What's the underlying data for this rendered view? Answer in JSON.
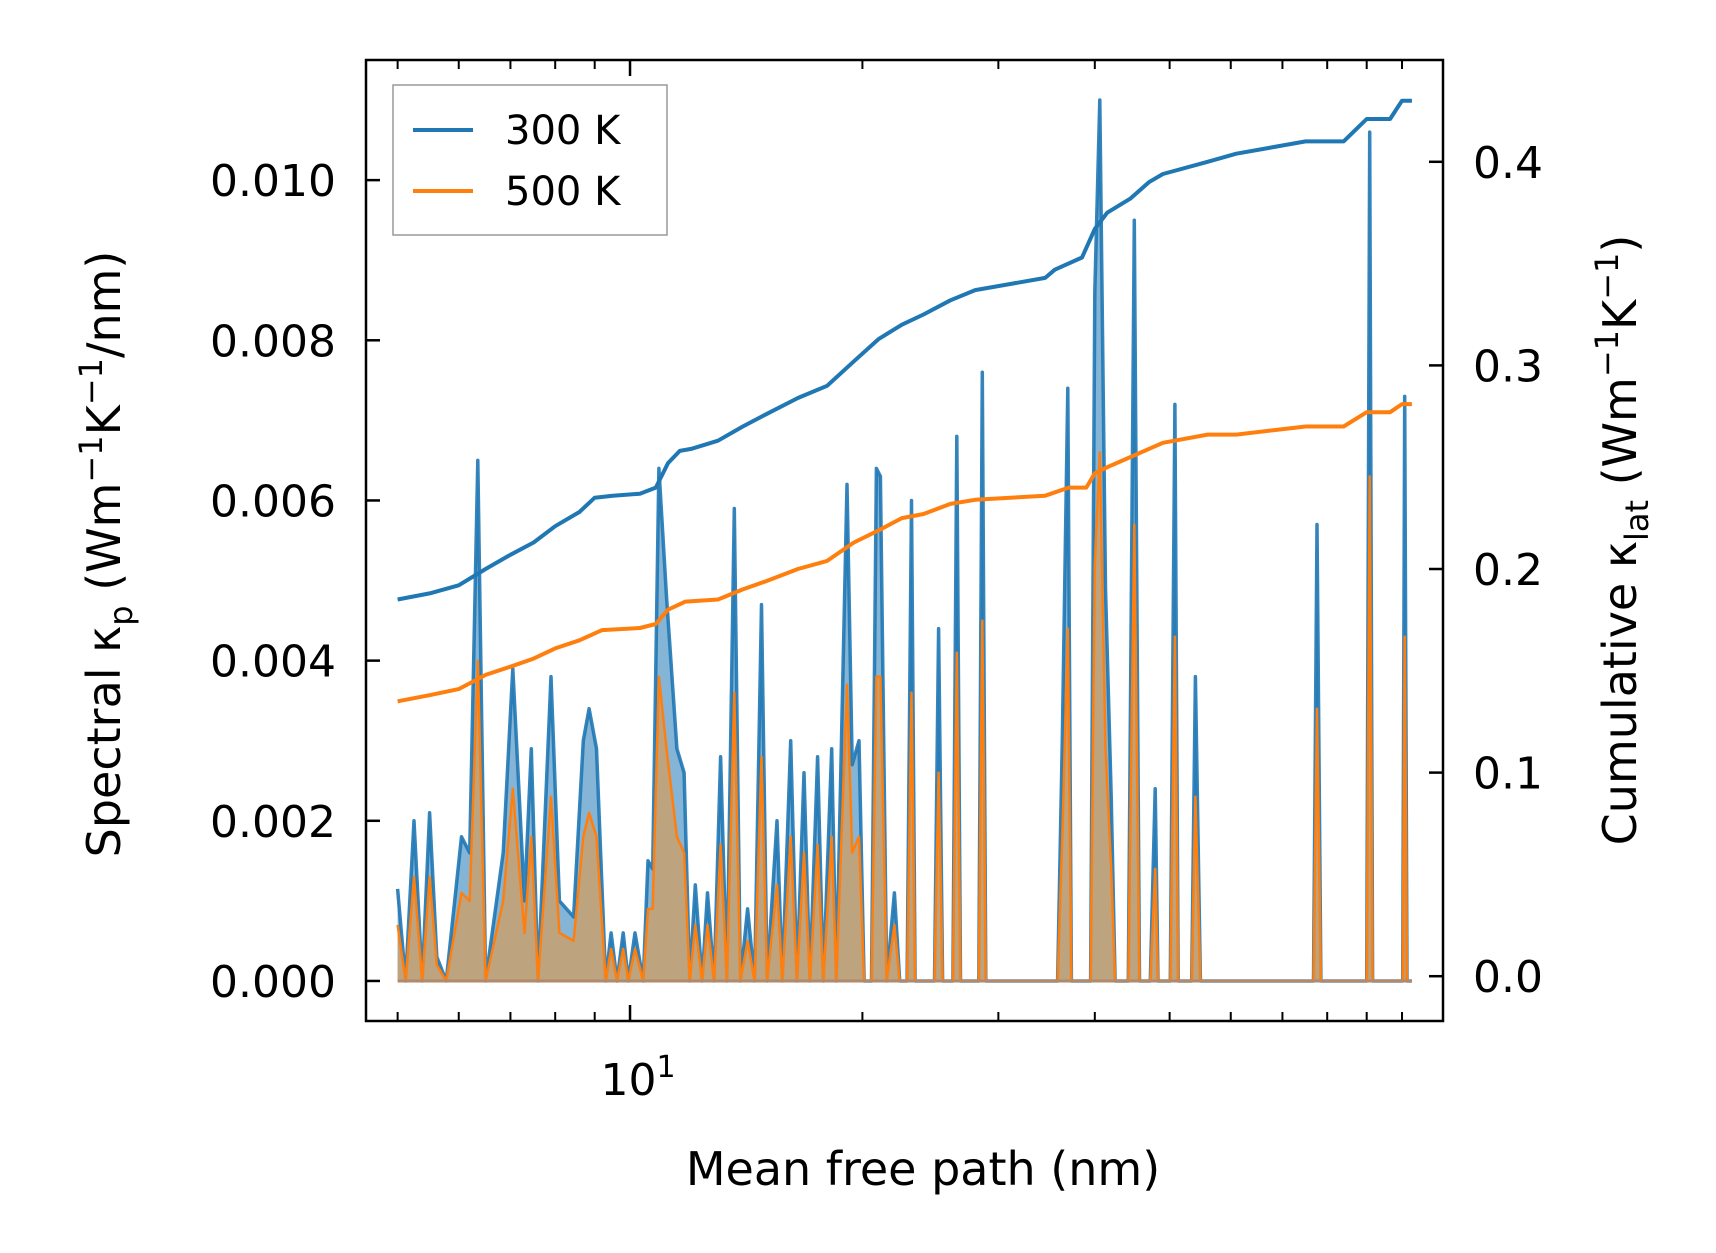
{
  "chart_data": {
    "type": "line",
    "xscale": "log",
    "xlabel": "Mean free path (nm)",
    "xlim": [
      4.55,
      113
    ],
    "x_tick_labels": [
      {
        "base": "10",
        "exp": "1"
      }
    ],
    "ylabel_left": {
      "prefix": "Spectral κ",
      "sub": "p",
      "units_open": " (Wm",
      "exp1": "−1",
      "mid": "K",
      "exp2": "−1",
      "units_close": "/nm)"
    },
    "ylabel_right": {
      "prefix": "Cumulative κ",
      "sub": "lat",
      "units_open": " (Wm",
      "exp1": "−1",
      "mid": "K",
      "exp2": "−1",
      "units_close": ")"
    },
    "ylim_left": [
      -0.0005,
      0.0115
    ],
    "ylim_right": [
      -0.022,
      0.45
    ],
    "yticks_left": [
      "0.000",
      "0.002",
      "0.004",
      "0.006",
      "0.008",
      "0.010"
    ],
    "yticks_right": [
      "0.0",
      "0.1",
      "0.2",
      "0.3",
      "0.4"
    ],
    "legend": {
      "position": "top-left",
      "entries": [
        "300 K",
        "500 K"
      ]
    },
    "colors": {
      "s300": "#1f77b4",
      "s500": "#ff7f0e",
      "fill300": "#4f8fc0",
      "fill500": "#c8a070"
    },
    "spectral": {
      "300K": [
        [
          5.0,
          0.00115
        ],
        [
          5.12,
          0.0
        ],
        [
          5.25,
          0.002
        ],
        [
          5.38,
          0.0
        ],
        [
          5.5,
          0.0021
        ],
        [
          5.62,
          0.0003
        ],
        [
          5.78,
          0.0
        ],
        [
          6.05,
          0.0018
        ],
        [
          6.2,
          0.0016
        ],
        [
          6.35,
          0.0065
        ],
        [
          6.5,
          0.0
        ],
        [
          6.85,
          0.0016
        ],
        [
          7.05,
          0.0039
        ],
        [
          7.3,
          0.001
        ],
        [
          7.45,
          0.0029
        ],
        [
          7.6,
          0.0
        ],
        [
          7.9,
          0.0038
        ],
        [
          8.1,
          0.001
        ],
        [
          8.45,
          0.0008
        ],
        [
          8.7,
          0.003
        ],
        [
          8.85,
          0.0034
        ],
        [
          9.05,
          0.0029
        ],
        [
          9.3,
          0.0
        ],
        [
          9.45,
          0.0006
        ],
        [
          9.62,
          0.0
        ],
        [
          9.8,
          0.0006
        ],
        [
          9.95,
          0.0
        ],
        [
          10.15,
          0.0006
        ],
        [
          10.4,
          0.0
        ],
        [
          10.55,
          0.0015
        ],
        [
          10.7,
          0.0014
        ],
        [
          10.9,
          0.0064
        ],
        [
          11.15,
          0.0048
        ],
        [
          11.5,
          0.0029
        ],
        [
          11.75,
          0.0026
        ],
        [
          11.95,
          0.0
        ],
        [
          12.15,
          0.0012
        ],
        [
          12.4,
          0.0
        ],
        [
          12.6,
          0.0011
        ],
        [
          12.85,
          0.0
        ],
        [
          13.1,
          0.0028
        ],
        [
          13.35,
          0.0
        ],
        [
          13.65,
          0.0059
        ],
        [
          13.9,
          0.0
        ],
        [
          14.2,
          0.0009
        ],
        [
          14.5,
          0.0
        ],
        [
          14.8,
          0.0047
        ],
        [
          15.05,
          0.0
        ],
        [
          15.5,
          0.002
        ],
        [
          15.75,
          0.0
        ],
        [
          16.15,
          0.003
        ],
        [
          16.45,
          0.0
        ],
        [
          16.8,
          0.0026
        ],
        [
          17.1,
          0.0
        ],
        [
          17.5,
          0.0028
        ],
        [
          17.8,
          0.0
        ],
        [
          18.25,
          0.0029
        ],
        [
          18.5,
          0.0
        ],
        [
          19.1,
          0.0062
        ],
        [
          19.4,
          0.0027
        ],
        [
          19.8,
          0.003
        ],
        [
          20.1,
          0.0
        ],
        [
          20.55,
          0.0
        ],
        [
          20.85,
          0.0064
        ],
        [
          21.1,
          0.0063
        ],
        [
          21.5,
          0.0
        ],
        [
          22.0,
          0.0011
        ],
        [
          22.35,
          0.0
        ],
        [
          22.85,
          0.0
        ],
        [
          23.15,
          0.006
        ],
        [
          23.4,
          0.0
        ],
        [
          24.8,
          0.0
        ],
        [
          25.1,
          0.0044
        ],
        [
          25.4,
          0.0
        ],
        [
          26.2,
          0.0
        ],
        [
          26.5,
          0.0068
        ],
        [
          26.8,
          0.0
        ],
        [
          28.3,
          0.0
        ],
        [
          28.6,
          0.0076
        ],
        [
          28.9,
          0.0
        ],
        [
          29.4,
          0.0
        ],
        [
          35.8,
          0.0
        ],
        [
          36.3,
          0.003
        ],
        [
          36.9,
          0.0074
        ],
        [
          37.3,
          0.0
        ],
        [
          39.5,
          0.0
        ],
        [
          40.0,
          0.0086
        ],
        [
          40.6,
          0.011
        ],
        [
          41.3,
          0.0049
        ],
        [
          42.0,
          0.0023
        ],
        [
          42.5,
          0.0
        ],
        [
          44.2,
          0.0
        ],
        [
          45.0,
          0.0095
        ],
        [
          45.7,
          0.0
        ],
        [
          47.2,
          0.0
        ],
        [
          47.9,
          0.0024
        ],
        [
          48.3,
          0.0
        ],
        [
          50.1,
          0.0
        ],
        [
          50.8,
          0.0072
        ],
        [
          51.3,
          0.0
        ],
        [
          53.4,
          0.0
        ],
        [
          54.0,
          0.0038
        ],
        [
          54.8,
          0.0
        ],
        [
          76.8,
          0.0
        ],
        [
          77.6,
          0.0057
        ],
        [
          78.5,
          0.0
        ],
        [
          90.0,
          0.0
        ],
        [
          90.8,
          0.0106
        ],
        [
          91.6,
          0.0
        ],
        [
          100.2,
          0.0
        ],
        [
          100.8,
          0.0073
        ],
        [
          101.5,
          0.0
        ],
        [
          103.0,
          0.0
        ]
      ],
      "500K": [
        [
          5.0,
          0.0007
        ],
        [
          5.12,
          0.0
        ],
        [
          5.25,
          0.0013
        ],
        [
          5.38,
          0.0
        ],
        [
          5.5,
          0.0013
        ],
        [
          5.62,
          0.0002
        ],
        [
          5.78,
          0.0
        ],
        [
          6.05,
          0.0011
        ],
        [
          6.2,
          0.001
        ],
        [
          6.35,
          0.004
        ],
        [
          6.5,
          0.0
        ],
        [
          6.85,
          0.001
        ],
        [
          7.05,
          0.0024
        ],
        [
          7.3,
          0.0006
        ],
        [
          7.45,
          0.0018
        ],
        [
          7.6,
          0.0
        ],
        [
          7.9,
          0.0023
        ],
        [
          8.1,
          0.0006
        ],
        [
          8.45,
          0.0005
        ],
        [
          8.7,
          0.0018
        ],
        [
          8.85,
          0.0021
        ],
        [
          9.05,
          0.0018
        ],
        [
          9.3,
          0.0
        ],
        [
          9.45,
          0.0004
        ],
        [
          9.62,
          0.0
        ],
        [
          9.8,
          0.0004
        ],
        [
          9.95,
          0.0
        ],
        [
          10.15,
          0.0004
        ],
        [
          10.4,
          0.0
        ],
        [
          10.55,
          0.0009
        ],
        [
          10.7,
          0.0009
        ],
        [
          10.9,
          0.0038
        ],
        [
          11.15,
          0.0029
        ],
        [
          11.5,
          0.0018
        ],
        [
          11.75,
          0.0016
        ],
        [
          11.95,
          0.0
        ],
        [
          12.15,
          0.0007
        ],
        [
          12.4,
          0.0
        ],
        [
          12.6,
          0.0007
        ],
        [
          12.85,
          0.0
        ],
        [
          13.1,
          0.0017
        ],
        [
          13.35,
          0.0
        ],
        [
          13.65,
          0.0036
        ],
        [
          13.9,
          0.0
        ],
        [
          14.2,
          0.0005
        ],
        [
          14.5,
          0.0
        ],
        [
          14.8,
          0.0028
        ],
        [
          15.05,
          0.0
        ],
        [
          15.5,
          0.0012
        ],
        [
          15.75,
          0.0
        ],
        [
          16.15,
          0.0018
        ],
        [
          16.45,
          0.0
        ],
        [
          16.8,
          0.0016
        ],
        [
          17.1,
          0.0
        ],
        [
          17.5,
          0.0017
        ],
        [
          17.8,
          0.0
        ],
        [
          18.25,
          0.0018
        ],
        [
          18.5,
          0.0
        ],
        [
          19.1,
          0.0037
        ],
        [
          19.4,
          0.0016
        ],
        [
          19.8,
          0.0018
        ],
        [
          20.1,
          0.0
        ],
        [
          20.55,
          0.0
        ],
        [
          20.85,
          0.0038
        ],
        [
          21.1,
          0.0038
        ],
        [
          21.5,
          0.0
        ],
        [
          22.0,
          0.0007
        ],
        [
          22.35,
          0.0
        ],
        [
          22.85,
          0.0
        ],
        [
          23.15,
          0.0036
        ],
        [
          23.4,
          0.0
        ],
        [
          24.8,
          0.0
        ],
        [
          25.1,
          0.0026
        ],
        [
          25.4,
          0.0
        ],
        [
          26.2,
          0.0
        ],
        [
          26.5,
          0.0041
        ],
        [
          26.8,
          0.0
        ],
        [
          28.3,
          0.0
        ],
        [
          28.6,
          0.0045
        ],
        [
          28.9,
          0.0
        ],
        [
          29.4,
          0.0
        ],
        [
          35.8,
          0.0
        ],
        [
          36.3,
          0.0018
        ],
        [
          36.9,
          0.0044
        ],
        [
          37.3,
          0.0
        ],
        [
          39.5,
          0.0
        ],
        [
          40.0,
          0.0052
        ],
        [
          40.6,
          0.0066
        ],
        [
          41.3,
          0.0029
        ],
        [
          42.0,
          0.0014
        ],
        [
          42.5,
          0.0
        ],
        [
          44.2,
          0.0
        ],
        [
          45.0,
          0.0057
        ],
        [
          45.7,
          0.0
        ],
        [
          47.2,
          0.0
        ],
        [
          47.9,
          0.0014
        ],
        [
          48.3,
          0.0
        ],
        [
          50.1,
          0.0
        ],
        [
          50.8,
          0.0043
        ],
        [
          51.3,
          0.0
        ],
        [
          53.4,
          0.0
        ],
        [
          54.0,
          0.0023
        ],
        [
          54.8,
          0.0
        ],
        [
          76.8,
          0.0
        ],
        [
          77.6,
          0.0034
        ],
        [
          78.5,
          0.0
        ],
        [
          90.0,
          0.0
        ],
        [
          90.8,
          0.0063
        ],
        [
          91.6,
          0.0
        ],
        [
          100.2,
          0.0
        ],
        [
          100.8,
          0.0043
        ],
        [
          101.5,
          0.0
        ],
        [
          103.0,
          0.0
        ]
      ]
    },
    "cumulative": {
      "300K": [
        [
          5.0,
          0.185
        ],
        [
          5.5,
          0.188
        ],
        [
          6.0,
          0.192
        ],
        [
          6.5,
          0.2
        ],
        [
          7.0,
          0.207
        ],
        [
          7.5,
          0.213
        ],
        [
          8.0,
          0.221
        ],
        [
          8.6,
          0.228
        ],
        [
          9.0,
          0.235
        ],
        [
          9.5,
          0.236
        ],
        [
          10.3,
          0.237
        ],
        [
          10.8,
          0.24
        ],
        [
          11.2,
          0.252
        ],
        [
          11.6,
          0.258
        ],
        [
          12.0,
          0.259
        ],
        [
          13.0,
          0.263
        ],
        [
          14.0,
          0.27
        ],
        [
          15.0,
          0.276
        ],
        [
          16.5,
          0.284
        ],
        [
          18.0,
          0.29
        ],
        [
          19.5,
          0.302
        ],
        [
          21.0,
          0.313
        ],
        [
          22.5,
          0.32
        ],
        [
          24.0,
          0.325
        ],
        [
          26.0,
          0.332
        ],
        [
          28.0,
          0.337
        ],
        [
          34.5,
          0.343
        ],
        [
          35.5,
          0.347
        ],
        [
          38.5,
          0.353
        ],
        [
          40.0,
          0.367
        ],
        [
          41.5,
          0.375
        ],
        [
          44.5,
          0.382
        ],
        [
          47.0,
          0.39
        ],
        [
          49.0,
          0.394
        ],
        [
          56.0,
          0.4
        ],
        [
          61.0,
          0.404
        ],
        [
          75.0,
          0.41
        ],
        [
          84.0,
          0.41
        ],
        [
          90.0,
          0.421
        ],
        [
          96.5,
          0.421
        ],
        [
          100.0,
          0.43
        ],
        [
          103.0,
          0.43
        ]
      ],
      "500K": [
        [
          5.0,
          0.135
        ],
        [
          5.5,
          0.138
        ],
        [
          6.0,
          0.141
        ],
        [
          6.5,
          0.148
        ],
        [
          7.0,
          0.152
        ],
        [
          7.5,
          0.156
        ],
        [
          8.0,
          0.161
        ],
        [
          8.6,
          0.165
        ],
        [
          9.2,
          0.17
        ],
        [
          10.3,
          0.171
        ],
        [
          10.8,
          0.173
        ],
        [
          11.2,
          0.18
        ],
        [
          11.8,
          0.184
        ],
        [
          13.0,
          0.185
        ],
        [
          14.0,
          0.19
        ],
        [
          15.0,
          0.194
        ],
        [
          16.5,
          0.2
        ],
        [
          18.0,
          0.204
        ],
        [
          19.5,
          0.213
        ],
        [
          21.0,
          0.219
        ],
        [
          22.5,
          0.225
        ],
        [
          24.0,
          0.227
        ],
        [
          26.0,
          0.232
        ],
        [
          28.0,
          0.234
        ],
        [
          34.5,
          0.236
        ],
        [
          37.0,
          0.24
        ],
        [
          39.0,
          0.24
        ],
        [
          40.0,
          0.247
        ],
        [
          41.5,
          0.25
        ],
        [
          44.5,
          0.255
        ],
        [
          47.0,
          0.259
        ],
        [
          49.0,
          0.262
        ],
        [
          56.0,
          0.266
        ],
        [
          61.0,
          0.266
        ],
        [
          75.0,
          0.27
        ],
        [
          84.0,
          0.27
        ],
        [
          90.0,
          0.277
        ],
        [
          96.5,
          0.277
        ],
        [
          100.0,
          0.281
        ],
        [
          103.0,
          0.281
        ]
      ]
    }
  }
}
